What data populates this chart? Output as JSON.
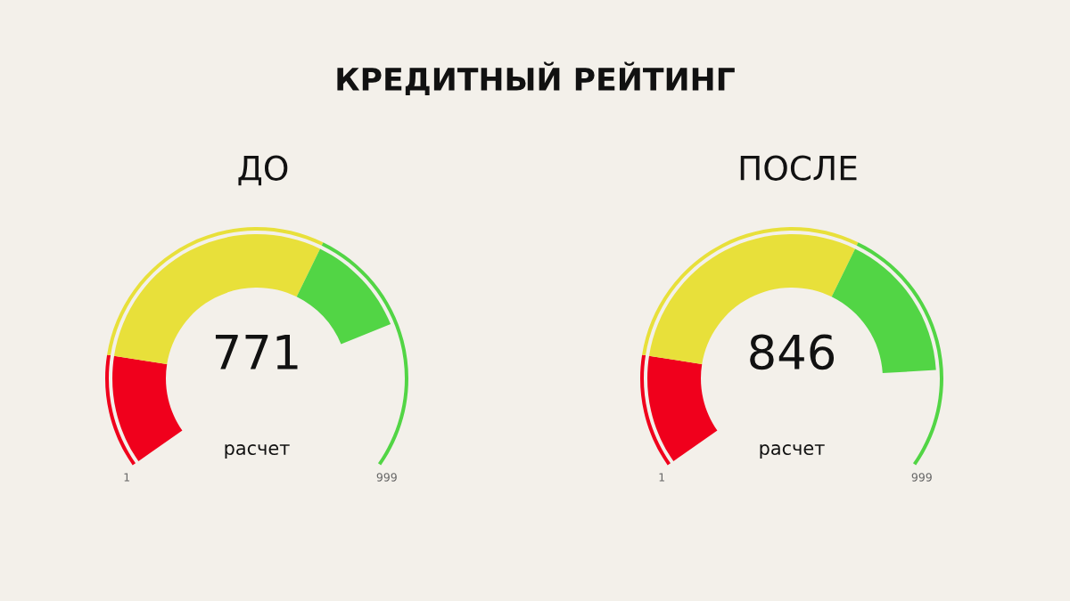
{
  "chart_data": [
    {
      "type": "other",
      "title": "КРЕДИТНЫЙ РЕЙТИНГ",
      "subtitle": "ДО",
      "values": [
        771
      ],
      "data_labels": true,
      "annotations": [
        "расчет",
        "1",
        "999"
      ]
    },
    {
      "type": "other",
      "subtitle": "ПОСЛЕ",
      "values": [
        846
      ],
      "data_labels": true,
      "annotations": [
        "расчет",
        "1",
        "999"
      ]
    }
  ]
}
